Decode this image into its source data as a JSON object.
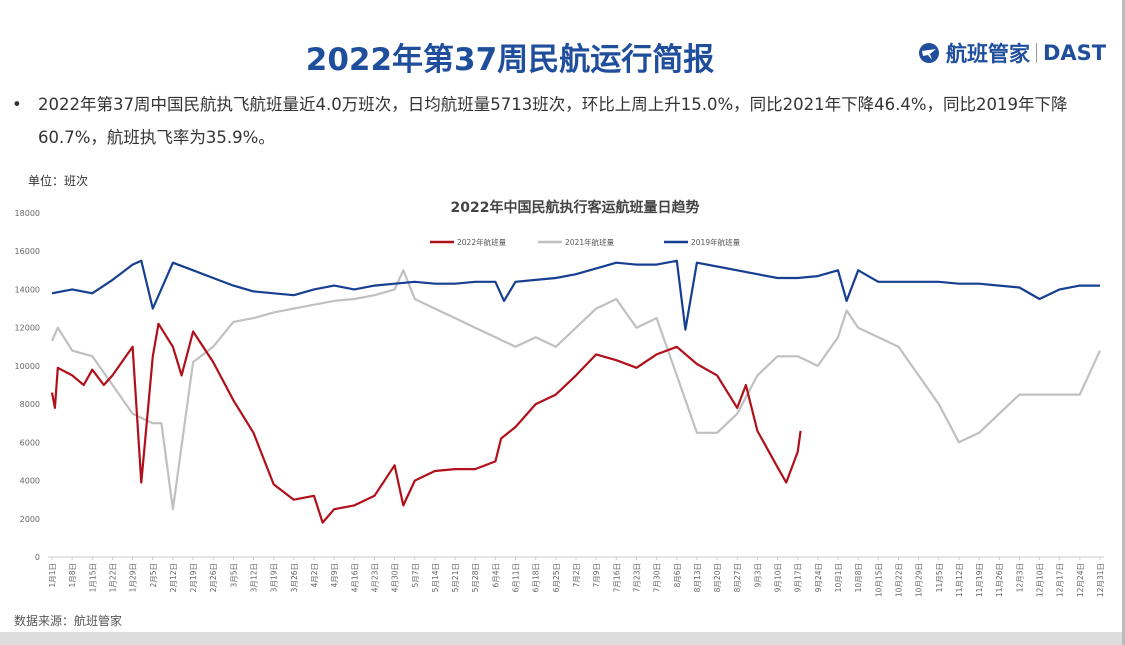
{
  "header": {
    "title": "2022年第37周民航运行简报",
    "logo_text": "航班管家",
    "logo_brand": "DAST"
  },
  "summary": "2022年第37周中国民航执飞航班量近4.0万班次，日均航班量5713班次，环比上周上升15.0%，同比2021年下降46.4%，同比2019年下降60.7%，航班执飞率为35.9%。",
  "unit_label": "单位：班次",
  "source": "数据来源：航班管家",
  "chart_data": {
    "type": "line",
    "title": "2022年中国民航执行客运航班量日趋势",
    "ylim": [
      0,
      18000
    ],
    "yticks": [
      0,
      2000,
      4000,
      6000,
      8000,
      10000,
      12000,
      14000,
      16000,
      18000
    ],
    "xticks": [
      "1月1日",
      "1月8日",
      "1月15日",
      "1月22日",
      "1月29日",
      "2月5日",
      "2月12日",
      "2月19日",
      "2月26日",
      "3月5日",
      "3月12日",
      "3月19日",
      "3月26日",
      "4月2日",
      "4月9日",
      "4月16日",
      "4月23日",
      "4月30日",
      "5月7日",
      "5月14日",
      "5月21日",
      "5月28日",
      "6月4日",
      "6月11日",
      "6月18日",
      "6月25日",
      "7月2日",
      "7月9日",
      "7月16日",
      "7月23日",
      "7月30日",
      "8月6日",
      "8月13日",
      "8月20日",
      "8月27日",
      "9月3日",
      "9月10日",
      "9月17日",
      "9月24日",
      "10月1日",
      "10月8日",
      "10月15日",
      "10月22日",
      "10月29日",
      "11月5日",
      "11月12日",
      "11月19日",
      "11月26日",
      "12月3日",
      "12月10日",
      "12月17日",
      "12月24日",
      "12月31日"
    ],
    "legend_position": "top",
    "grid": false,
    "series": [
      {
        "name": "2022年航班量",
        "color": "#b0101a",
        "points": [
          [
            "01-01",
            8600
          ],
          [
            "01-02",
            7800
          ],
          [
            "01-03",
            9900
          ],
          [
            "01-08",
            9500
          ],
          [
            "01-12",
            9000
          ],
          [
            "01-15",
            9800
          ],
          [
            "01-19",
            9000
          ],
          [
            "01-22",
            9500
          ],
          [
            "01-29",
            11000
          ],
          [
            "02-01",
            3900
          ],
          [
            "02-05",
            10500
          ],
          [
            "02-07",
            12200
          ],
          [
            "02-12",
            11000
          ],
          [
            "02-15",
            9500
          ],
          [
            "02-19",
            11800
          ],
          [
            "02-26",
            10200
          ],
          [
            "03-05",
            8200
          ],
          [
            "03-12",
            6500
          ],
          [
            "03-19",
            3800
          ],
          [
            "03-26",
            3000
          ],
          [
            "04-02",
            3200
          ],
          [
            "04-05",
            1800
          ],
          [
            "04-09",
            2500
          ],
          [
            "04-16",
            2700
          ],
          [
            "04-23",
            3200
          ],
          [
            "04-30",
            4800
          ],
          [
            "05-03",
            2700
          ],
          [
            "05-07",
            4000
          ],
          [
            "05-14",
            4500
          ],
          [
            "05-21",
            4600
          ],
          [
            "05-28",
            4600
          ],
          [
            "06-04",
            5000
          ],
          [
            "06-06",
            6200
          ],
          [
            "06-11",
            6800
          ],
          [
            "06-18",
            8000
          ],
          [
            "06-25",
            8500
          ],
          [
            "07-02",
            9500
          ],
          [
            "07-09",
            10600
          ],
          [
            "07-16",
            10300
          ],
          [
            "07-23",
            9900
          ],
          [
            "07-30",
            10600
          ],
          [
            "08-06",
            11000
          ],
          [
            "08-13",
            10100
          ],
          [
            "08-20",
            9500
          ],
          [
            "08-27",
            7800
          ],
          [
            "08-30",
            9000
          ],
          [
            "09-03",
            6600
          ],
          [
            "09-10",
            4700
          ],
          [
            "09-13",
            3900
          ],
          [
            "09-17",
            5500
          ],
          [
            "09-18",
            6600
          ]
        ]
      },
      {
        "name": "2021年航班量",
        "color": "#c0c0c0",
        "points": [
          [
            "01-01",
            11300
          ],
          [
            "01-03",
            12000
          ],
          [
            "01-08",
            10800
          ],
          [
            "01-15",
            10500
          ],
          [
            "01-22",
            9000
          ],
          [
            "01-29",
            7500
          ],
          [
            "02-05",
            7000
          ],
          [
            "02-08",
            7000
          ],
          [
            "02-12",
            2500
          ],
          [
            "02-19",
            10200
          ],
          [
            "02-26",
            11000
          ],
          [
            "03-05",
            12300
          ],
          [
            "03-12",
            12500
          ],
          [
            "03-19",
            12800
          ],
          [
            "03-26",
            13000
          ],
          [
            "04-02",
            13200
          ],
          [
            "04-09",
            13400
          ],
          [
            "04-16",
            13500
          ],
          [
            "04-23",
            13700
          ],
          [
            "04-30",
            14000
          ],
          [
            "05-03",
            15000
          ],
          [
            "05-07",
            13500
          ],
          [
            "05-14",
            13000
          ],
          [
            "05-21",
            12500
          ],
          [
            "05-28",
            12000
          ],
          [
            "06-04",
            11500
          ],
          [
            "06-11",
            11000
          ],
          [
            "06-18",
            11500
          ],
          [
            "06-25",
            11000
          ],
          [
            "07-02",
            12000
          ],
          [
            "07-09",
            13000
          ],
          [
            "07-16",
            13500
          ],
          [
            "07-23",
            12000
          ],
          [
            "07-30",
            12500
          ],
          [
            "08-06",
            9500
          ],
          [
            "08-13",
            6500
          ],
          [
            "08-20",
            6500
          ],
          [
            "08-27",
            7500
          ],
          [
            "09-03",
            9500
          ],
          [
            "09-10",
            10500
          ],
          [
            "09-17",
            10500
          ],
          [
            "09-24",
            10000
          ],
          [
            "10-01",
            11500
          ],
          [
            "10-04",
            12900
          ],
          [
            "10-08",
            12000
          ],
          [
            "10-15",
            11500
          ],
          [
            "10-22",
            11000
          ],
          [
            "10-29",
            9500
          ],
          [
            "11-05",
            8000
          ],
          [
            "11-12",
            6000
          ],
          [
            "11-19",
            6500
          ],
          [
            "11-26",
            7500
          ],
          [
            "12-03",
            8500
          ],
          [
            "12-10",
            8500
          ],
          [
            "12-17",
            8500
          ],
          [
            "12-24",
            8500
          ],
          [
            "12-31",
            10800
          ]
        ]
      },
      {
        "name": "2019年航班量",
        "color": "#173f91",
        "points": [
          [
            "01-01",
            13800
          ],
          [
            "01-08",
            14000
          ],
          [
            "01-15",
            13800
          ],
          [
            "01-22",
            14500
          ],
          [
            "01-29",
            15300
          ],
          [
            "02-01",
            15500
          ],
          [
            "02-05",
            13000
          ],
          [
            "02-12",
            15400
          ],
          [
            "02-19",
            15000
          ],
          [
            "02-26",
            14600
          ],
          [
            "03-05",
            14200
          ],
          [
            "03-12",
            13900
          ],
          [
            "03-19",
            13800
          ],
          [
            "03-26",
            13700
          ],
          [
            "04-02",
            14000
          ],
          [
            "04-09",
            14200
          ],
          [
            "04-16",
            14000
          ],
          [
            "04-23",
            14200
          ],
          [
            "04-30",
            14300
          ],
          [
            "05-07",
            14400
          ],
          [
            "05-14",
            14300
          ],
          [
            "05-21",
            14300
          ],
          [
            "05-28",
            14400
          ],
          [
            "06-04",
            14400
          ],
          [
            "06-07",
            13400
          ],
          [
            "06-11",
            14400
          ],
          [
            "06-18",
            14500
          ],
          [
            "06-25",
            14600
          ],
          [
            "07-02",
            14800
          ],
          [
            "07-09",
            15100
          ],
          [
            "07-16",
            15400
          ],
          [
            "07-23",
            15300
          ],
          [
            "07-30",
            15300
          ],
          [
            "08-06",
            15500
          ],
          [
            "08-09",
            11900
          ],
          [
            "08-13",
            15400
          ],
          [
            "08-20",
            15200
          ],
          [
            "08-27",
            15000
          ],
          [
            "09-03",
            14800
          ],
          [
            "09-10",
            14600
          ],
          [
            "09-17",
            14600
          ],
          [
            "09-24",
            14700
          ],
          [
            "10-01",
            15000
          ],
          [
            "10-04",
            13400
          ],
          [
            "10-08",
            15000
          ],
          [
            "10-15",
            14400
          ],
          [
            "10-22",
            14400
          ],
          [
            "10-29",
            14400
          ],
          [
            "11-05",
            14400
          ],
          [
            "11-12",
            14300
          ],
          [
            "11-19",
            14300
          ],
          [
            "11-26",
            14200
          ],
          [
            "12-03",
            14100
          ],
          [
            "12-10",
            13500
          ],
          [
            "12-17",
            14000
          ],
          [
            "12-24",
            14200
          ],
          [
            "12-31",
            14200
          ]
        ]
      }
    ]
  }
}
